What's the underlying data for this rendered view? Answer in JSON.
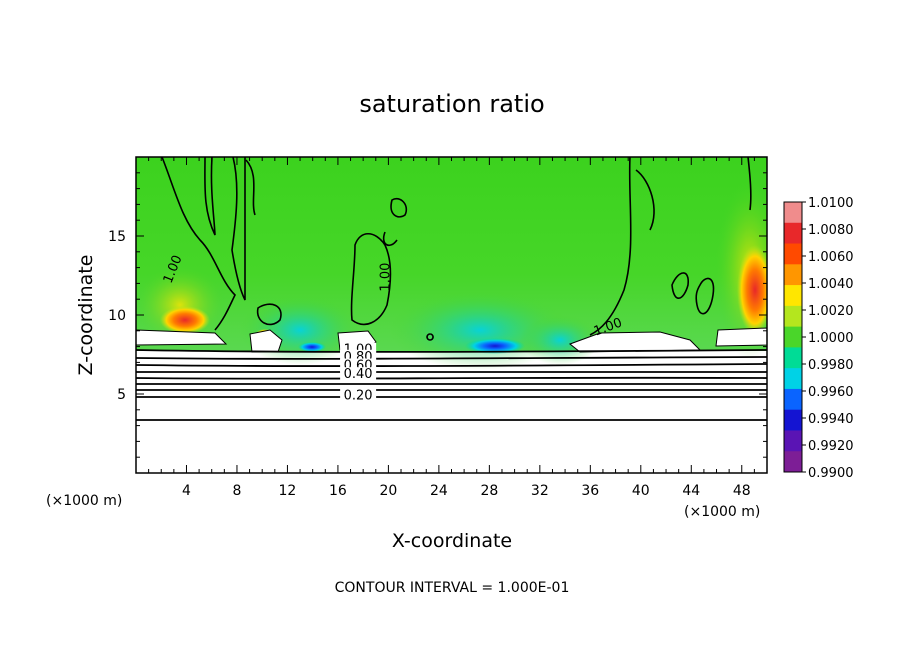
{
  "chart_data": {
    "type": "heatmap",
    "title": "saturation ratio",
    "xlabel": "X-coordinate",
    "ylabel": "Z-coordinate",
    "x_unit_left": "(×1000 m)",
    "x_unit_right": "(×1000 m)",
    "xlim": [
      0,
      50
    ],
    "ylim": [
      0,
      20
    ],
    "xticks": [
      4,
      8,
      12,
      16,
      20,
      24,
      28,
      32,
      36,
      40,
      44,
      48
    ],
    "yticks": [
      5,
      10,
      15
    ],
    "colorbar": {
      "min": 0.99,
      "max": 1.01,
      "ticks": [
        "1.0100",
        "1.0080",
        "1.0060",
        "1.0040",
        "1.0020",
        "1.0000",
        "0.9980",
        "0.9960",
        "0.9940",
        "0.9920",
        "0.9900"
      ],
      "colors": [
        "#f08c8c",
        "#e8282a",
        "#ff4a00",
        "#ff9600",
        "#ffe600",
        "#b4e61e",
        "#4ad62a",
        "#00dc96",
        "#00d2e6",
        "#0a64ff",
        "#1414d2",
        "#5a14b4",
        "#7d1e96"
      ]
    },
    "contour_labels": [
      "1.00",
      "1.00",
      "1.00",
      "1.00",
      "0.80",
      "0.60",
      "0.40",
      "0.20"
    ],
    "contour_levels": [
      0.2,
      0.3,
      0.4,
      0.5,
      0.6,
      0.7,
      0.8,
      0.9,
      1.0
    ],
    "footer": "CONTOUR INTERVAL = 1.000E-01"
  }
}
